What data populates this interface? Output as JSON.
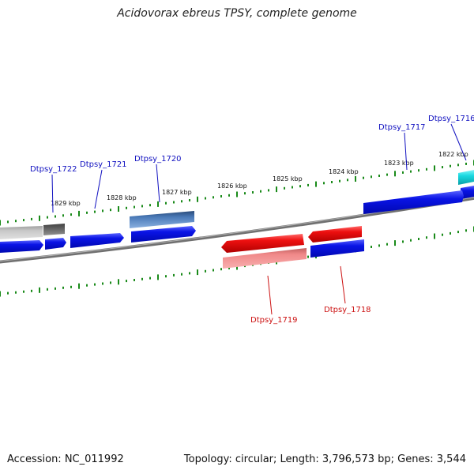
{
  "title": "Acidovorax ebreus TPSY, complete genome",
  "footer": {
    "accession": "Accession: NC_011992",
    "summary": "Topology: circular; Length: 3,796,573 bp; Genes: 3,544"
  },
  "colors": {
    "backbone": "#808080",
    "tick": "#1a8a1a",
    "forward_label": "#1010c0",
    "reverse_label": "#cc1010",
    "blue_gene": "#0a14e6",
    "red_gene": "#ee1010",
    "pink_gene": "#f08888",
    "steel_gene": "#4a7ab8",
    "cyan_gene": "#18d8e0",
    "gray_gene": "#c0c0c0",
    "dark_gray_gene": "#606060"
  },
  "ticks": [
    {
      "label": "1822 kbp"
    },
    {
      "label": "1823 kbp"
    },
    {
      "label": "1824 kbp"
    },
    {
      "label": "1825 kbp"
    },
    {
      "label": "1826 kbp"
    },
    {
      "label": "1827 kbp"
    },
    {
      "label": "1828 kbp"
    },
    {
      "label": "1829 kbp"
    }
  ],
  "gene_labels": [
    {
      "text": "Dtpsy_1716",
      "strand": "forward"
    },
    {
      "text": "Dtpsy_1717",
      "strand": "forward"
    },
    {
      "text": "Dtpsy_1718",
      "strand": "reverse"
    },
    {
      "text": "Dtpsy_1719",
      "strand": "reverse"
    },
    {
      "text": "Dtpsy_1720",
      "strand": "forward"
    },
    {
      "text": "Dtpsy_1721",
      "strand": "forward"
    },
    {
      "text": "Dtpsy_1722",
      "strand": "forward"
    }
  ]
}
